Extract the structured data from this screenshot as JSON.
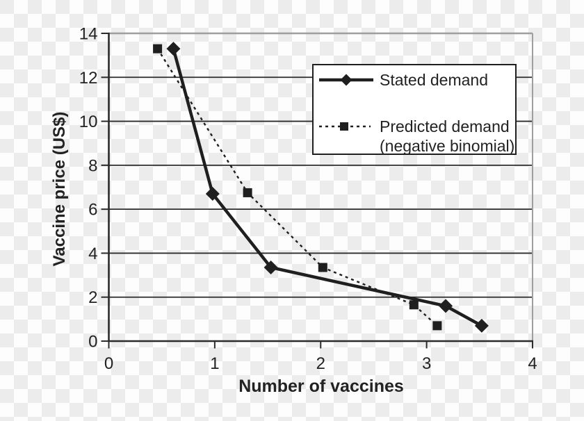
{
  "figure": {
    "xlabel": "Number of vaccines",
    "ylabel": "Vaccine price (US$)"
  },
  "legend": {
    "items": [
      {
        "label": "Stated demand",
        "marker": "diamond",
        "line_style": "solid"
      },
      {
        "label": "Predicted demand\n(negative binomial)",
        "marker": "square",
        "line_style": "dashed"
      }
    ]
  },
  "chart_data": {
    "type": "line",
    "title": "",
    "xlabel": "Number of vaccines",
    "ylabel": "Vaccine price (US$)",
    "xlim": [
      0,
      4
    ],
    "ylim": [
      0,
      14
    ],
    "x_ticks": [
      0,
      1,
      2,
      3,
      4
    ],
    "y_ticks": [
      0,
      2,
      4,
      6,
      8,
      10,
      12,
      14
    ],
    "grid": "horizontal",
    "legend_position": "upper-right",
    "series": [
      {
        "name": "Stated demand",
        "line_style": "solid",
        "marker": "diamond",
        "color": "#1f1f1f",
        "points": [
          [
            0.61,
            13.3
          ],
          [
            0.98,
            6.7
          ],
          [
            1.53,
            3.35
          ],
          [
            3.18,
            1.6
          ],
          [
            3.52,
            0.7
          ]
        ]
      },
      {
        "name": "Predicted demand (negative binomial)",
        "line_style": "dashed",
        "marker": "square",
        "color": "#1f1f1f",
        "points": [
          [
            0.46,
            13.3
          ],
          [
            1.31,
            6.75
          ],
          [
            2.02,
            3.35
          ],
          [
            2.88,
            1.65
          ],
          [
            3.1,
            0.7
          ]
        ]
      }
    ],
    "colors": {
      "line": "#1f1f1f",
      "grid": "#2b2b2b",
      "frame_light": "#9e9e9e",
      "text": "#222222",
      "legend_bg": "#ffffff"
    }
  }
}
